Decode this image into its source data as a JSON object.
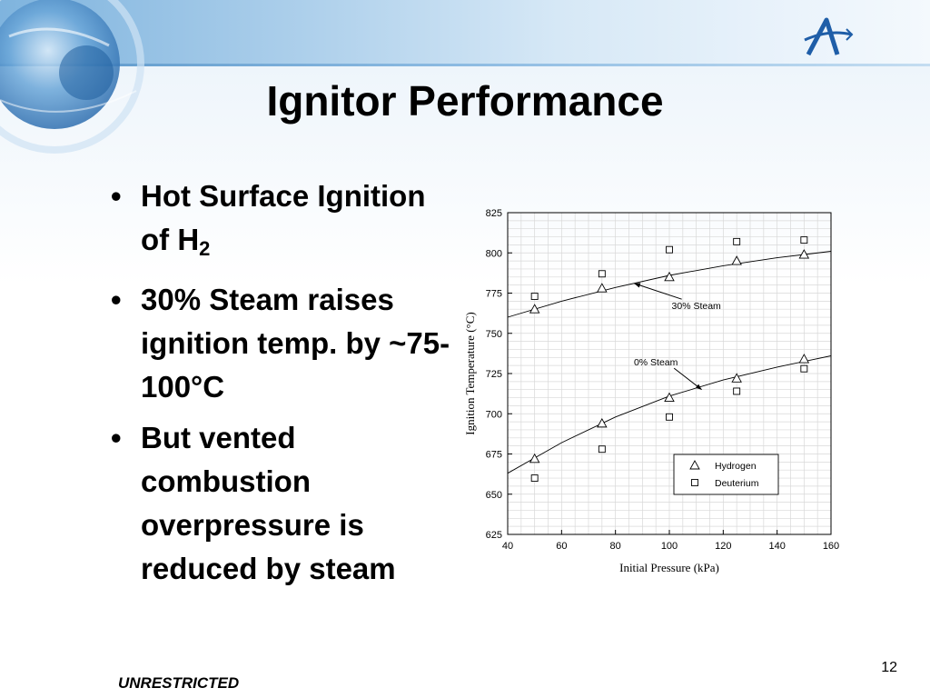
{
  "slide": {
    "title": "Ignitor Performance",
    "page_number": "12",
    "footer": "UNRESTRICTED"
  },
  "bullets": [
    {
      "text": "Hot Surface Ignition of H",
      "subscript": "2"
    },
    {
      "text": "30% Steam raises ignition temp. by ~75-100°C"
    },
    {
      "text": "But vented combustion overpressure is reduced by steam"
    }
  ],
  "chart_data": {
    "type": "scatter",
    "xlabel": "Initial Pressure (kPa)",
    "ylabel": "Ignition Temperature (°C)",
    "xlim": [
      40,
      160
    ],
    "ylim": [
      625,
      825
    ],
    "x_ticks": [
      40,
      60,
      80,
      100,
      120,
      140,
      160
    ],
    "y_ticks": [
      625,
      650,
      675,
      700,
      725,
      750,
      775,
      800,
      825
    ],
    "grid": true,
    "legend_position": "bottom-right",
    "legend": [
      {
        "label": "Hydrogen",
        "marker": "triangle"
      },
      {
        "label": "Deuterium",
        "marker": "square"
      }
    ],
    "series": [
      {
        "name": "Hydrogen",
        "marker": "triangle",
        "points": [
          [
            50,
            765
          ],
          [
            75,
            778
          ],
          [
            100,
            785
          ],
          [
            125,
            795
          ],
          [
            150,
            799
          ],
          [
            50,
            672
          ],
          [
            75,
            694
          ],
          [
            100,
            710
          ],
          [
            125,
            722
          ],
          [
            150,
            734
          ]
        ]
      },
      {
        "name": "Deuterium",
        "marker": "square",
        "points": [
          [
            50,
            773
          ],
          [
            75,
            787
          ],
          [
            100,
            802
          ],
          [
            125,
            807
          ],
          [
            150,
            808
          ],
          [
            50,
            660
          ],
          [
            75,
            678
          ],
          [
            100,
            698
          ],
          [
            125,
            714
          ],
          [
            150,
            728
          ]
        ]
      }
    ],
    "fit_curves": [
      {
        "label": "30% Steam",
        "points": [
          [
            40,
            760
          ],
          [
            60,
            770
          ],
          [
            80,
            778.5
          ],
          [
            100,
            786
          ],
          [
            120,
            792
          ],
          [
            140,
            797
          ],
          [
            160,
            801
          ]
        ]
      },
      {
        "label": "0% Steam",
        "points": [
          [
            40,
            663
          ],
          [
            60,
            682
          ],
          [
            80,
            698
          ],
          [
            100,
            711
          ],
          [
            120,
            721
          ],
          [
            140,
            729
          ],
          [
            160,
            736
          ]
        ]
      }
    ],
    "annotations": [
      {
        "text": "30% Steam",
        "x": 110,
        "y": 765,
        "arrow_to": [
          87,
          781
        ]
      },
      {
        "text": "0% Steam",
        "x": 95,
        "y": 730,
        "arrow_to": [
          112,
          715
        ]
      }
    ]
  }
}
